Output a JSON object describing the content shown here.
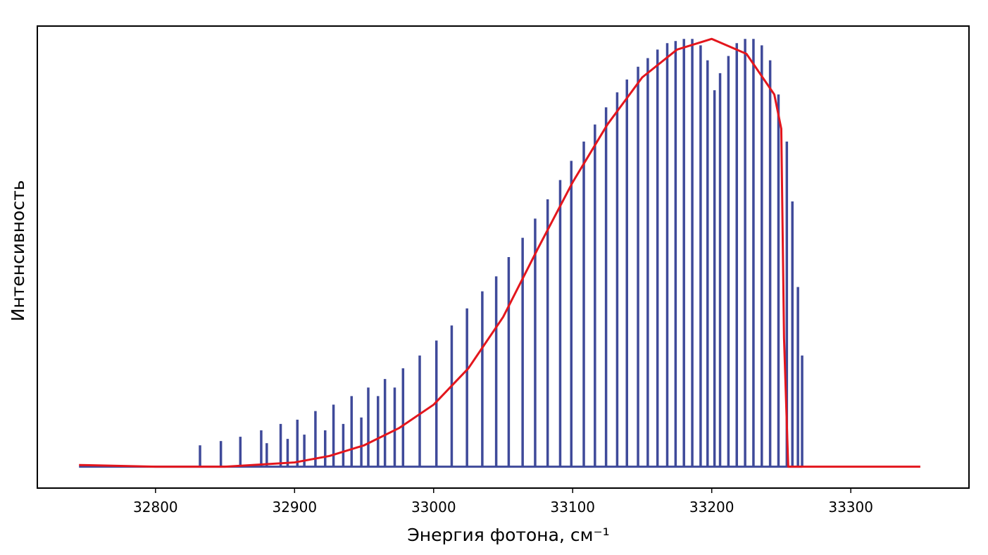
{
  "chart_data": {
    "type": "line",
    "title": "",
    "xlabel": "Энергия фотона, см⁻¹",
    "ylabel": "Интенсивность",
    "xlim": [
      32715,
      33385
    ],
    "ylim": [
      -0.05,
      1.03
    ],
    "x_ticks": [
      32800,
      32900,
      33000,
      33100,
      33200,
      33300
    ],
    "y_ticks_shown": false,
    "grid": false,
    "legend": "none",
    "series": [
      {
        "kind": "stick-spectrum",
        "color": "#3f4a9a",
        "baseline": 0,
        "x_range": [
          32745,
          33265
        ],
        "description_points": {
          "x": [
            32832,
            32847,
            32861,
            32876,
            32880,
            32890,
            32895,
            32902,
            32907,
            32915,
            32922,
            32928,
            32935,
            32941,
            32948,
            32953,
            32960,
            32965,
            32972,
            32978,
            32990,
            33002,
            33013,
            33024,
            33035,
            33045,
            33054,
            33064,
            33073,
            33082,
            33091,
            33099,
            33108,
            33116,
            33124,
            33132,
            33139,
            33147,
            33154,
            33161,
            33168,
            33174,
            33180,
            33186,
            33192,
            33197,
            33202,
            33206,
            33212,
            33218,
            33224,
            33230,
            33236,
            33242,
            33248,
            33254,
            33258,
            33262,
            33265
          ],
          "y": [
            0.05,
            0.06,
            0.07,
            0.085,
            0.055,
            0.1,
            0.065,
            0.11,
            0.075,
            0.13,
            0.085,
            0.145,
            0.1,
            0.165,
            0.115,
            0.185,
            0.165,
            0.205,
            0.185,
            0.23,
            0.26,
            0.295,
            0.33,
            0.37,
            0.41,
            0.445,
            0.49,
            0.535,
            0.58,
            0.625,
            0.67,
            0.715,
            0.76,
            0.8,
            0.84,
            0.875,
            0.905,
            0.935,
            0.955,
            0.975,
            0.99,
            0.995,
            1.0,
            1.0,
            0.985,
            0.95,
            0.88,
            0.92,
            0.96,
            0.99,
            1.0,
            1.0,
            0.985,
            0.95,
            0.87,
            0.76,
            0.62,
            0.42,
            0.26
          ]
        }
      },
      {
        "kind": "envelope",
        "color": "#e3161d",
        "x": [
          32745,
          32800,
          32850,
          32875,
          32900,
          32925,
          32950,
          32975,
          33000,
          33025,
          33050,
          33075,
          33100,
          33125,
          33150,
          33175,
          33200,
          33225,
          33245,
          33250,
          33252,
          33255,
          33300,
          33350
        ],
        "y": [
          0.004,
          0.0,
          0.0,
          0.005,
          0.01,
          0.025,
          0.05,
          0.09,
          0.145,
          0.23,
          0.35,
          0.51,
          0.665,
          0.8,
          0.91,
          0.975,
          1.0,
          0.965,
          0.87,
          0.79,
          0.3,
          0.0,
          0.0,
          0.0
        ]
      }
    ]
  }
}
